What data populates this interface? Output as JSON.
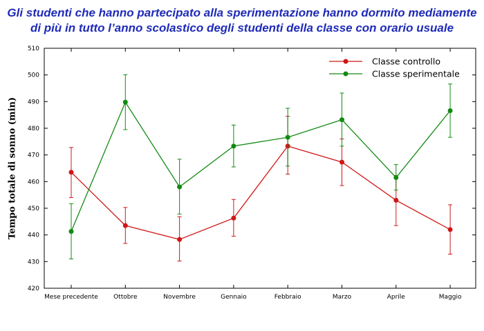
{
  "title_line1": "Gli studenti che hanno partecipato alla sperimentazione hanno dormito mediamente",
  "title_line2": "di più  in tutto  l’anno scolastico degli studenti della classe con orario usuale",
  "chart_data": {
    "type": "line",
    "categories": [
      "Mese precedente",
      "Ottobre",
      "Novembre",
      "Gennaio",
      "Febbraio",
      "Marzo",
      "Aprile",
      "Maggio"
    ],
    "ylabel": "Tempo totale di sonno (min)",
    "xlabel": "",
    "ylim": [
      420,
      510
    ],
    "yticks": [
      420,
      430,
      440,
      450,
      460,
      470,
      480,
      490,
      500,
      510
    ],
    "grid": false,
    "legend_position": "top-right",
    "series": [
      {
        "name": "Classe controllo",
        "color": "#d01616",
        "values": [
          463.5,
          443.5,
          438.3,
          446.3,
          473.3,
          467.3,
          453.0,
          442.0
        ],
        "error_low": [
          454.0,
          436.8,
          430.2,
          439.5,
          462.8,
          458.5,
          443.5,
          432.8
        ],
        "error_high": [
          472.8,
          450.3,
          446.8,
          453.3,
          484.5,
          476.0,
          462.3,
          451.3
        ]
      },
      {
        "name": "Classe sperimentale",
        "color": "#128a12",
        "values": [
          441.3,
          489.8,
          458.0,
          473.3,
          476.6,
          483.2,
          461.5,
          486.6
        ],
        "error_low": [
          431.0,
          479.5,
          447.8,
          465.5,
          465.8,
          473.3,
          456.8,
          476.6
        ],
        "error_high": [
          451.7,
          500.1,
          468.4,
          481.2,
          487.5,
          493.2,
          466.4,
          496.6
        ]
      }
    ]
  }
}
